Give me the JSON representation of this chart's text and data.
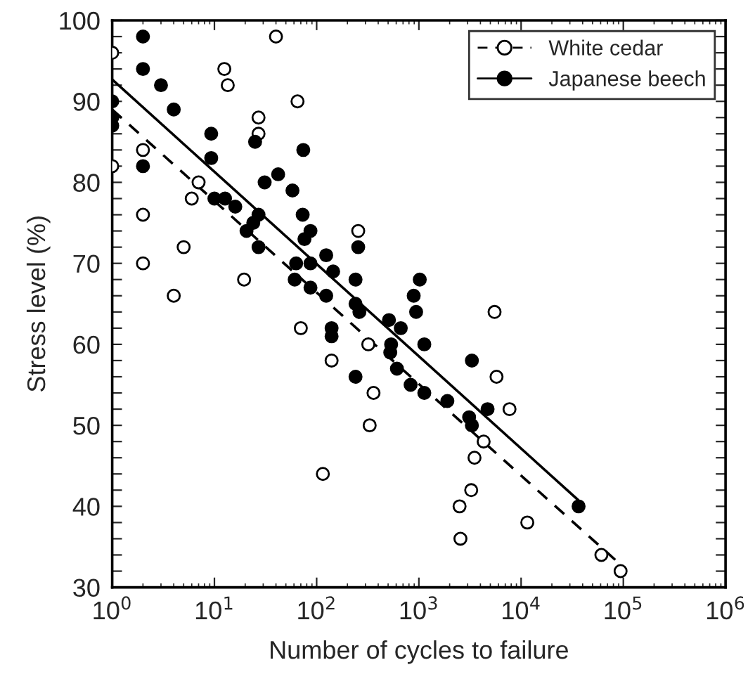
{
  "chart_data": {
    "type": "scatter",
    "xlabel": "Number of cycles to failure",
    "ylabel": "Stress level (%)",
    "log": "x",
    "legend": "top right",
    "grid": false,
    "xlim": [
      1,
      1000000
    ],
    "xticks": [
      {
        "value": 1,
        "label": "10$^{0}$"
      },
      {
        "value": 10,
        "label": "10$^{1}$"
      },
      {
        "value": 100,
        "label": "10$^{2}$"
      },
      {
        "value": 1000,
        "label": "10$^{3}$"
      },
      {
        "value": 10000,
        "label": "10$^{4}$"
      },
      {
        "value": 100000,
        "label": "10$^{5}$"
      },
      {
        "value": 1000000,
        "label": "10$^{6}$"
      }
    ],
    "ylim": [
      30,
      100
    ],
    "yticks": [
      30,
      {
        "value": 32,
        "label": null
      },
      {
        "value": 34,
        "label": null
      },
      {
        "value": 36,
        "label": null
      },
      {
        "value": 38,
        "label": null
      },
      40,
      {
        "value": 42,
        "label": null
      },
      {
        "value": 44,
        "label": null
      },
      {
        "value": 46,
        "label": null
      },
      {
        "value": 48,
        "label": null
      },
      50,
      {
        "value": 52,
        "label": null
      },
      {
        "value": 54,
        "label": null
      },
      {
        "value": 56,
        "label": null
      },
      {
        "value": 58,
        "label": null
      },
      60,
      {
        "value": 62,
        "label": null
      },
      {
        "value": 64,
        "label": null
      },
      {
        "value": 66,
        "label": null
      },
      {
        "value": 68,
        "label": null
      },
      70,
      {
        "value": 72,
        "label": null
      },
      {
        "value": 74,
        "label": null
      },
      {
        "value": 76,
        "label": null
      },
      {
        "value": 78,
        "label": null
      },
      80,
      {
        "value": 82,
        "label": null
      },
      {
        "value": 84,
        "label": null
      },
      {
        "value": 86,
        "label": null
      },
      {
        "value": 88,
        "label": null
      },
      90,
      {
        "value": 92,
        "label": null
      },
      {
        "value": 94,
        "label": null
      },
      {
        "value": 96,
        "label": null
      },
      {
        "value": 98,
        "label": null
      },
      100
    ],
    "series": [
      {
        "name": "White cedar",
        "color": "#ffffff",
        "marker": "circle",
        "line_style": "dashed",
        "x": [
          1,
          12.5,
          13.5,
          40,
          65,
          27,
          27,
          2,
          1,
          7,
          6,
          2,
          5,
          2,
          4,
          19.5,
          255,
          70,
          320,
          140,
          360,
          330,
          115,
          5500,
          5750,
          7700,
          4300,
          3500,
          3250,
          2500,
          11500,
          2550,
          61000,
          94000
        ],
        "values": [
          96,
          94,
          92,
          98,
          90,
          88,
          86,
          84,
          82,
          80,
          78,
          76,
          72,
          70,
          66,
          68,
          74,
          62,
          60,
          58,
          54,
          50,
          44,
          64,
          56,
          52,
          48,
          46,
          42,
          40,
          38,
          36,
          34,
          32
        ]
      },
      {
        "name": "Japanese beech",
        "color": "#000000",
        "marker": "circle",
        "line_style": "solid",
        "x": [
          2,
          2,
          3,
          4,
          1,
          1,
          1,
          2,
          9.3,
          9.3,
          10,
          12.7,
          16,
          25,
          42,
          31,
          74,
          58,
          73,
          27,
          24,
          20.6,
          27,
          87,
          76,
          63,
          87,
          124,
          145,
          61,
          87,
          124,
          255,
          240,
          240,
          262,
          510,
          665,
          1020,
          890,
          940,
          140,
          140,
          535,
          525,
          1130,
          240,
          610,
          830,
          1130,
          1900,
          3300,
          3100,
          3300,
          4700,
          36500
        ],
        "values": [
          98,
          94,
          92,
          89,
          90,
          88,
          87,
          82,
          86,
          83,
          78,
          78,
          77,
          85,
          81,
          80,
          84,
          79,
          76,
          76,
          75,
          74,
          72,
          74,
          73,
          70,
          70,
          71,
          69,
          68,
          67,
          66,
          72,
          68,
          65,
          64,
          63,
          62,
          68,
          66,
          64,
          62,
          61,
          60,
          59,
          60,
          56,
          57,
          55,
          54,
          53,
          58,
          51,
          50,
          52,
          40
        ]
      },
      {
        "type": "line",
        "color": "#000000",
        "line_style": "dashed",
        "marker": "none",
        "x": [
          1,
          100000
        ],
        "values": [
          89,
          32.5
        ]
      },
      {
        "type": "line",
        "color": "#000000",
        "line_style": "solid",
        "marker": "none",
        "x": [
          1,
          36000
        ],
        "values": [
          92.7,
          40.8
        ]
      }
    ]
  }
}
